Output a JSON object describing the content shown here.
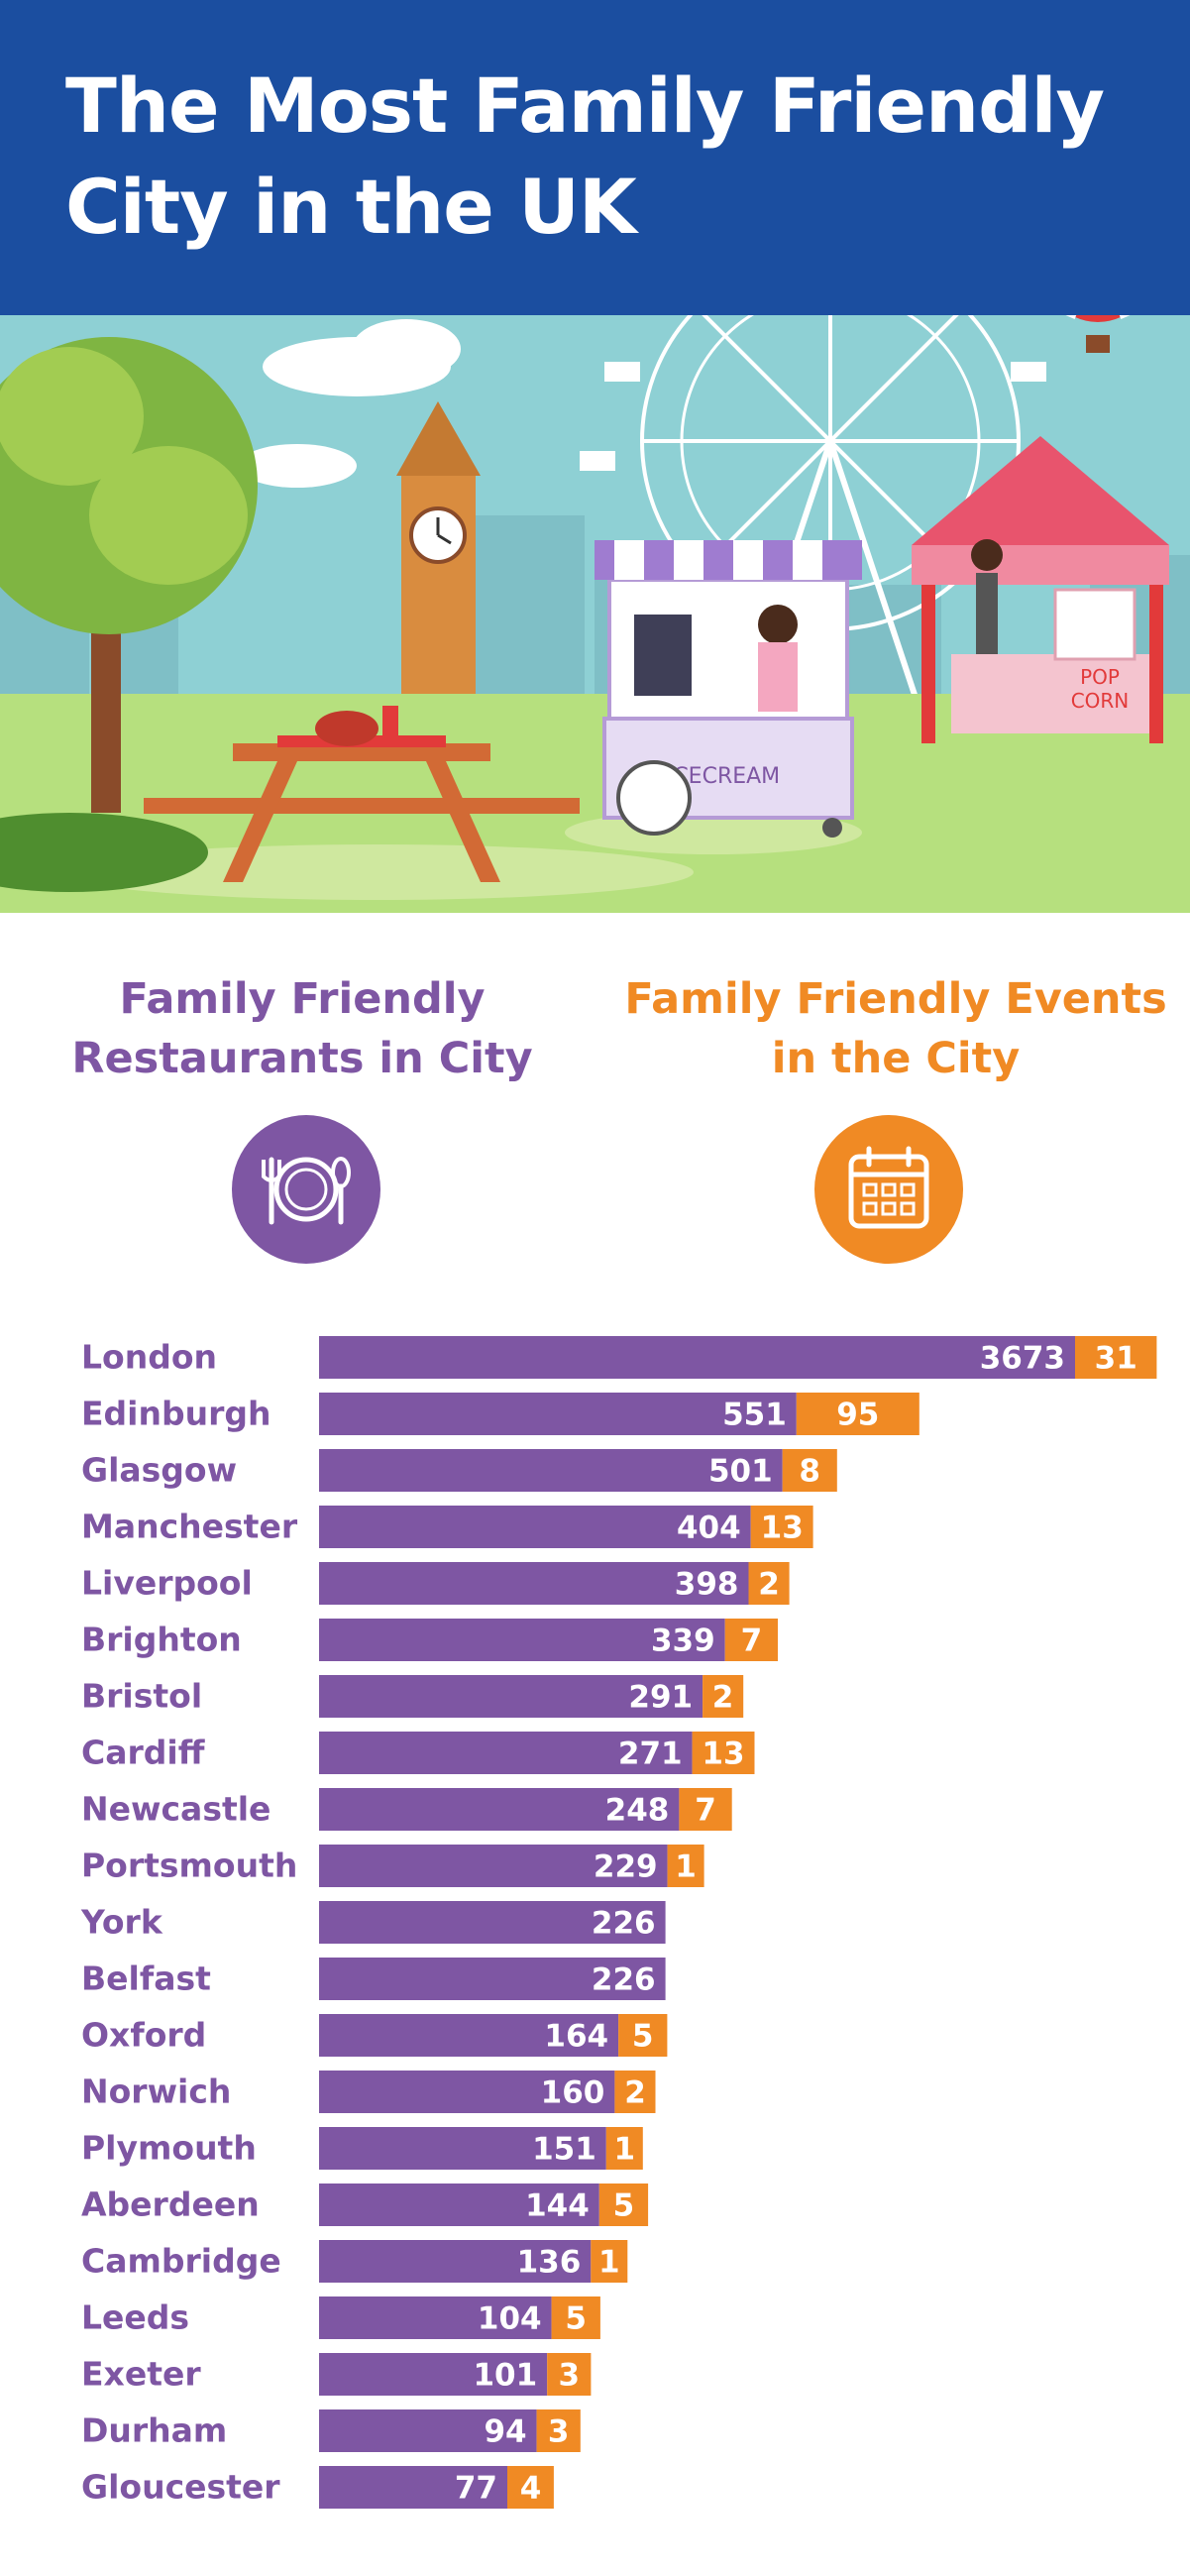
{
  "title": "The Most Family Friendly City in the UK",
  "columns": {
    "restaurants": "Family Friendly Restaurants in City",
    "events": "Family Friendly Events in the City"
  },
  "icons": {
    "restaurants": "plate-fork-spoon-icon",
    "events": "calendar-icon"
  },
  "scene_text": {
    "cart": "ICECREAM",
    "stand_line1": "POP",
    "stand_line2": "CORN"
  },
  "colors": {
    "header": "#1b4ea0",
    "restaurants": "#7e56a3",
    "events": "#f08a24"
  },
  "chart_data": {
    "type": "bar",
    "orientation": "horizontal",
    "stacked": true,
    "categories": [
      "London",
      "Edinburgh",
      "Glasgow",
      "Manchester",
      "Liverpool",
      "Brighton",
      "Bristol",
      "Cardiff",
      "Newcastle",
      "Portsmouth",
      "York",
      "Belfast",
      "Oxford",
      "Norwich",
      "Plymouth",
      "Aberdeen",
      "Cambridge",
      "Leeds",
      "Exeter",
      "Durham",
      "Gloucester"
    ],
    "series": [
      {
        "name": "Family Friendly Restaurants in City",
        "values": [
          3673,
          551,
          501,
          404,
          398,
          339,
          291,
          271,
          248,
          229,
          226,
          226,
          164,
          160,
          151,
          144,
          136,
          104,
          101,
          94,
          77
        ]
      },
      {
        "name": "Family Friendly Events in the City",
        "values": [
          31,
          95,
          8,
          13,
          2,
          7,
          2,
          13,
          7,
          1,
          0,
          0,
          5,
          2,
          1,
          5,
          1,
          5,
          3,
          3,
          4
        ]
      }
    ],
    "legend": "top"
  }
}
